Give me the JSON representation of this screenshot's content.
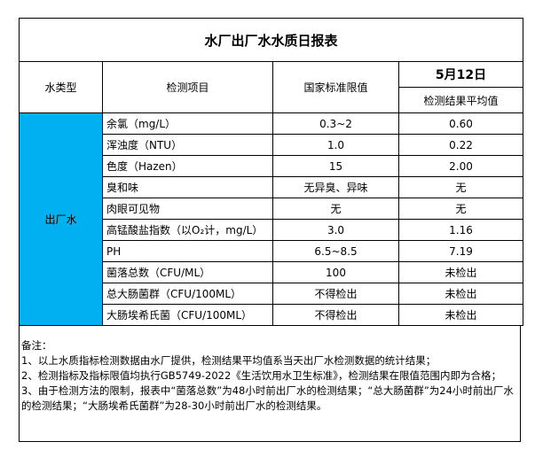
{
  "title": "水厂出厂水水质日报表",
  "header": {
    "type": "水类型",
    "item": "检测项目",
    "standard": "国家标准限值",
    "date": "5月12日",
    "result": "检测结果平均值"
  },
  "water_type": "出厂水",
  "rows": [
    {
      "item": "余氯（mg/L）",
      "standard": "0.3~2",
      "result": "0.60"
    },
    {
      "item": "浑浊度（NTU）",
      "standard": "1.0",
      "result": "0.22"
    },
    {
      "item": "色度（Hazen）",
      "standard": "15",
      "result": "2.00"
    },
    {
      "item": "臭和味",
      "standard": "无异臭、异味",
      "result": "无"
    },
    {
      "item": "肉眼可见物",
      "standard": "无",
      "result": "无"
    },
    {
      "item": "高锰酸盐指数（以O₂计，mg/L）",
      "standard": "3.0",
      "result": "1.16"
    },
    {
      "item": "PH",
      "standard": "6.5~8.5",
      "result": "7.19"
    },
    {
      "item": "菌落总数（CFU/ML）",
      "standard": "100",
      "result": "未检出"
    },
    {
      "item": "总大肠菌群（CFU/100ML）",
      "standard": "不得检出",
      "result": "未检出"
    },
    {
      "item": "大肠埃希氏菌（CFU/100ML）",
      "standard": "不得检出",
      "result": "未检出"
    }
  ],
  "notes": [
    "备注：",
    "1、以上水质指标检测数据由水厂提供，检测结果平均值系当天出厂水检测数据的统计结果；",
    "2、检测指标及指标限值均执行GB5749-2022《生活饮用水卫生标准》，检测结果在限值范围内即为合格；",
    "3、由于检测方法的限制，报表中“菌落总数”为48小时前出厂水的检测结果；“总大肠菌群”为24小时前出厂水的检测结果；“大肠埃希氏菌群”为28-30小时前出厂水的检测结果。"
  ],
  "colors": {
    "water_type_bg": "#00b0f0"
  }
}
